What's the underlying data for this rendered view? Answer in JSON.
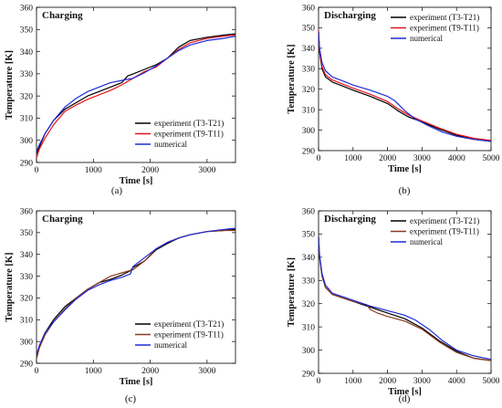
{
  "colors": {
    "black": "#000000",
    "red": "#e8121b",
    "brown": "#8b3a1e",
    "blue": "#1f2bd6"
  },
  "chart_data": [
    {
      "type": "line",
      "caption": "(a)",
      "title": "Charging",
      "xlabel": "Time [s]",
      "ylabel": "Temperature [K]",
      "xlim": [
        0,
        3500
      ],
      "ylim": [
        290,
        360
      ],
      "xticks": [
        0,
        1000,
        2000,
        3000
      ],
      "yticks": [
        290,
        300,
        310,
        320,
        330,
        340,
        350,
        360
      ],
      "legend_position": "bottom-right",
      "series": [
        {
          "name": "experiment (T3-T21)",
          "color": "black",
          "x": [
            0,
            50,
            150,
            300,
            500,
            700,
            900,
            1100,
            1300,
            1500,
            1600,
            1700,
            1900,
            2100,
            2300,
            2500,
            2700,
            3000,
            3300,
            3500
          ],
          "y": [
            294,
            297,
            303,
            309,
            314,
            317,
            320,
            322,
            324,
            326,
            329,
            330,
            332,
            334,
            337,
            342,
            345,
            346.5,
            347.5,
            348
          ]
        },
        {
          "name": "experiment (T9-T11)",
          "color": "red",
          "x": [
            0,
            50,
            150,
            300,
            500,
            700,
            900,
            1100,
            1300,
            1500,
            1700,
            1900,
            2100,
            2300,
            2500,
            2700,
            3000,
            3300,
            3500
          ],
          "y": [
            292,
            296,
            301,
            307,
            313,
            316,
            318.5,
            320.5,
            322.5,
            325,
            328,
            331,
            333,
            337,
            341,
            344,
            346,
            347,
            347.5
          ]
        },
        {
          "name": "numerical",
          "color": "blue",
          "x": [
            0,
            50,
            150,
            300,
            500,
            700,
            900,
            1100,
            1300,
            1500,
            1700,
            1900,
            2100,
            2300,
            2500,
            2700,
            3000,
            3300,
            3500
          ],
          "y": [
            295,
            298,
            303,
            309,
            315,
            319,
            322,
            324,
            326,
            327,
            328,
            330.5,
            333.5,
            337,
            340.5,
            343,
            345,
            346,
            347
          ]
        }
      ]
    },
    {
      "type": "line",
      "caption": "(b)",
      "title": "Discharging",
      "xlabel": "Time [s]",
      "ylabel": "Temperature [K]",
      "xlim": [
        0,
        5000
      ],
      "ylim": [
        290,
        360
      ],
      "xticks": [
        0,
        1000,
        2000,
        3000,
        4000,
        5000
      ],
      "yticks": [
        290,
        300,
        310,
        320,
        330,
        340,
        350,
        360
      ],
      "legend_position": "top-right",
      "series": [
        {
          "name": "experiment (T3-T21)",
          "color": "black",
          "x": [
            0,
            30,
            100,
            200,
            400,
            700,
            1000,
            1500,
            2000,
            2300,
            2600,
            3000,
            3500,
            4000,
            4500,
            5000
          ],
          "y": [
            348,
            338,
            330,
            326,
            323.5,
            321.5,
            319.5,
            316.5,
            313,
            309.5,
            306.5,
            304,
            300.5,
            297.5,
            295.5,
            294.5
          ]
        },
        {
          "name": "experiment (T9-T11)",
          "color": "red",
          "x": [
            0,
            30,
            100,
            200,
            400,
            700,
            1000,
            1500,
            2000,
            2300,
            2600,
            3000,
            3500,
            4000,
            4500,
            5000
          ],
          "y": [
            349,
            339,
            331,
            327,
            324.5,
            322.5,
            320.5,
            317.5,
            314,
            310.5,
            307.5,
            304.5,
            301,
            298,
            296,
            295
          ]
        },
        {
          "name": "numerical",
          "color": "blue",
          "x": [
            0,
            30,
            100,
            200,
            400,
            700,
            1000,
            1500,
            2000,
            2200,
            2500,
            2800,
            3200,
            3600,
            4000,
            4500,
            5000
          ],
          "y": [
            348,
            340,
            333,
            329,
            326,
            324,
            322,
            319.5,
            316.5,
            314.5,
            309.5,
            305.5,
            302,
            299,
            297,
            295.5,
            294.5
          ]
        }
      ]
    },
    {
      "type": "line",
      "caption": "(c)",
      "title": "Charging",
      "xlabel": "Time [s]",
      "ylabel": "Temperature [K]",
      "xlim": [
        0,
        3500
      ],
      "ylim": [
        290,
        360
      ],
      "xticks": [
        0,
        1000,
        2000,
        3000
      ],
      "yticks": [
        290,
        300,
        310,
        320,
        330,
        340,
        350,
        360
      ],
      "legend_position": "bottom-right",
      "series": [
        {
          "name": "experiment (T3-T21)",
          "color": "black",
          "x": [
            0,
            50,
            150,
            300,
            500,
            700,
            900,
            1100,
            1300,
            1500,
            1650,
            1700,
            1900,
            2100,
            2300,
            2500,
            2700,
            3000,
            3300,
            3500
          ],
          "y": [
            293,
            298,
            304,
            310,
            316,
            320,
            324,
            327,
            328.5,
            330.5,
            332.5,
            334,
            337,
            342,
            345,
            347.5,
            349,
            350.5,
            351,
            351.5
          ]
        },
        {
          "name": "experiment (T9-T11)",
          "color": "brown",
          "x": [
            0,
            50,
            150,
            300,
            500,
            700,
            900,
            1100,
            1300,
            1500,
            1700,
            1900,
            2100,
            2300,
            2500,
            2700,
            3000,
            3300,
            3500
          ],
          "y": [
            292,
            297,
            303,
            309,
            315,
            320,
            324,
            327,
            330,
            331.5,
            333,
            337,
            342.5,
            345.5,
            347.5,
            349,
            350.5,
            351,
            351
          ]
        },
        {
          "name": "numerical",
          "color": "blue",
          "x": [
            0,
            50,
            150,
            300,
            500,
            700,
            900,
            1100,
            1300,
            1500,
            1650,
            1700,
            1900,
            2100,
            2300,
            2500,
            2700,
            3000,
            3300,
            3500
          ],
          "y": [
            294,
            298,
            304,
            309,
            314.5,
            319.5,
            323.5,
            326,
            328,
            329.5,
            331,
            334.5,
            338.5,
            342.5,
            345.5,
            347.5,
            349,
            350.5,
            351.5,
            352
          ]
        }
      ]
    },
    {
      "type": "line",
      "caption": "(d)",
      "title": "Discharging",
      "xlabel": "Time [s]",
      "ylabel": "Temperature [K]",
      "xlim": [
        0,
        5000
      ],
      "ylim": [
        290,
        360
      ],
      "xticks": [
        0,
        1000,
        2000,
        3000,
        4000,
        5000
      ],
      "yticks": [
        290,
        300,
        310,
        320,
        330,
        340,
        350,
        360
      ],
      "legend_position": "top-right",
      "series": [
        {
          "name": "experiment (T3-T21)",
          "color": "black",
          "x": [
            0,
            30,
            100,
            200,
            400,
            700,
            1000,
            1500,
            2000,
            2500,
            3000,
            3500,
            4000,
            4500,
            5000
          ],
          "y": [
            349,
            340,
            332,
            327,
            324,
            322.5,
            321,
            318.5,
            316,
            313.5,
            309.5,
            304,
            299.5,
            296.5,
            295.5
          ]
        },
        {
          "name": "experiment (T9-T11)",
          "color": "brown",
          "x": [
            0,
            30,
            100,
            200,
            400,
            700,
            1000,
            1400,
            1500,
            1700,
            2000,
            2500,
            3000,
            3500,
            4000,
            4500,
            5000
          ],
          "y": [
            349,
            340,
            332,
            327,
            324,
            322.5,
            321,
            319.5,
            317.5,
            316,
            314.5,
            312.5,
            309,
            303.5,
            299,
            296.5,
            295.5
          ]
        },
        {
          "name": "numerical",
          "color": "blue",
          "x": [
            0,
            30,
            100,
            200,
            400,
            700,
            1000,
            1500,
            2000,
            2500,
            2800,
            3200,
            3600,
            4000,
            4500,
            5000
          ],
          "y": [
            349,
            341,
            333,
            328,
            324.5,
            323,
            321.5,
            319,
            317,
            315,
            313,
            309,
            304,
            300,
            297.5,
            296
          ]
        }
      ]
    }
  ]
}
